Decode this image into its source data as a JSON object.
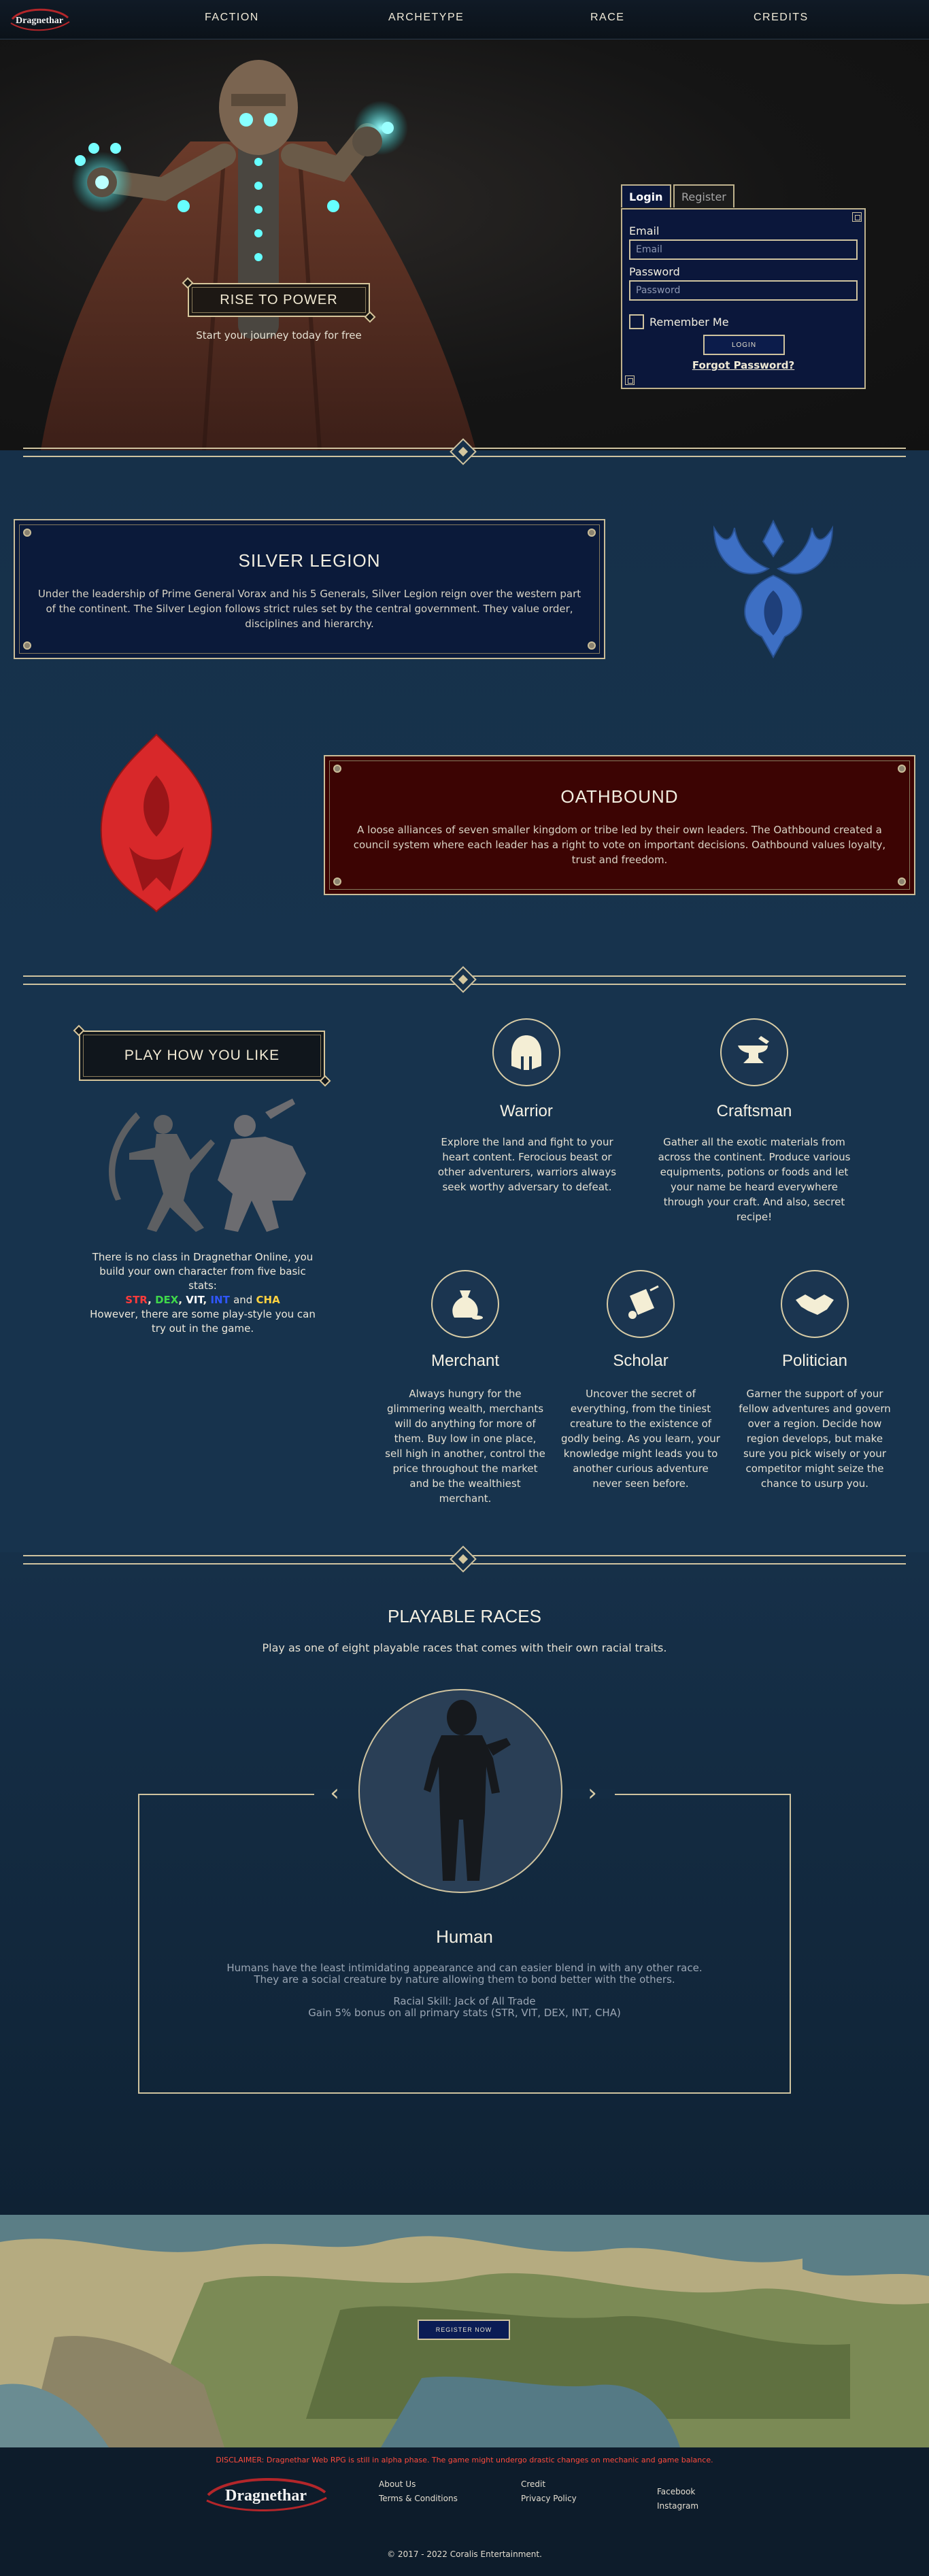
{
  "nav": {
    "logo_text": "Dragnethar",
    "links": [
      "FACTION",
      "ARCHETYPE",
      "RACE",
      "CREDITS"
    ]
  },
  "hero": {
    "cta_label": "RISE TO POWER",
    "subtitle": "Start your journey today for free"
  },
  "login": {
    "tab_login": "Login",
    "tab_register": "Register",
    "email_label": "Email",
    "email_placeholder": "Email",
    "password_label": "Password",
    "password_placeholder": "Password",
    "remember_label": "Remember Me",
    "submit_label": "LOGIN",
    "forgot_label": "Forgot Password?"
  },
  "factions": {
    "silver": {
      "title": "SILVER LEGION",
      "description": "Under the leadership of Prime General Vorax and his 5 Generals, Silver Legion reign over the western part of the continent. The Silver Legion follows strict rules set by the central government. They value order, disciplines and hierarchy.",
      "color": "#3d6fc4"
    },
    "oath": {
      "title": "OATHBOUND",
      "description": "A loose alliances of seven smaller kingdom or tribe led by their own leaders. The Oathbound created a council system where each leader has a right to vote on important decisions. Oathbound values loyalty, trust and freedom.",
      "color": "#d8282a"
    }
  },
  "archetype": {
    "button_label": "PLAY HOW YOU LIKE",
    "intro_line1": "There is no class in Dragnethar Online, you build your own character from five basic stats:",
    "stats": [
      {
        "label": "STR",
        "color": "#ff3b3b"
      },
      {
        "label": "DEX",
        "color": "#3fd84a"
      },
      {
        "label": "VIT",
        "color": "#ffffff"
      },
      {
        "label": "INT",
        "color": "#2f56ff"
      },
      {
        "label": "CHA",
        "color": "#ffd240"
      }
    ],
    "stats_and": "and",
    "intro_line2": "However, there are some play-style you can try out in the game.",
    "items": [
      {
        "name": "Warrior",
        "icon": "helmet-icon",
        "description": "Explore the land and fight to your heart content. Ferocious beast or other adventurers, warriors always seek worthy adversary to defeat."
      },
      {
        "name": "Craftsman",
        "icon": "anvil-icon",
        "description": "Gather all the exotic materials from across the continent. Produce various equipments, potions or foods and let your name be heard everywhere through your craft. And also, secret recipe!"
      },
      {
        "name": "Merchant",
        "icon": "money-bag-icon",
        "description": "Always hungry for the glimmering wealth, merchants will do anything for more of them. Buy low in one place, sell high in another, control the price throughout the market and be the wealthiest merchant."
      },
      {
        "name": "Scholar",
        "icon": "scroll-icon",
        "description": "Uncover the secret of everything, from the tiniest creature to the existence of godly being. As you learn, your knowledge might leads you to another curious adventure never seen before."
      },
      {
        "name": "Politician",
        "icon": "handshake-icon",
        "description": "Garner the support of your fellow adventures and govern over a region. Decide how region develops, but make sure you pick wisely or your competitor might seize the chance to usurp you."
      }
    ]
  },
  "races": {
    "title": "PLAYABLE RACES",
    "subtitle": "Play as one of eight playable races that comes with their own racial traits.",
    "prev_icon": "chevron-left-icon",
    "next_icon": "chevron-right-icon",
    "current": {
      "name": "Human",
      "desc_line1": "Humans have the least intimidating appearance and can easier blend in with any other race.",
      "desc_line2": "They are a social creature by nature allowing them to bond better with the others.",
      "skill_line": "Racial Skill: Jack of All Trade",
      "bonus_line": "Gain 5% bonus on all primary stats (STR, VIT, DEX, INT, CHA)"
    }
  },
  "map": {
    "register_label": "REGISTER NOW"
  },
  "footer": {
    "disclaimer": "DISCLAIMER: Dragnethar Web RPG is still in alpha phase. The game might undergo drastic changes on mechanic and game balance.",
    "logo_text": "Dragnethar",
    "col1": [
      "About Us",
      "Terms & Conditions"
    ],
    "col2": [
      "Credit",
      "Privacy Policy"
    ],
    "col3": [
      "Facebook",
      "Instagram"
    ],
    "copyright": "© 2017 - 2022 Coralis Entertainment."
  }
}
